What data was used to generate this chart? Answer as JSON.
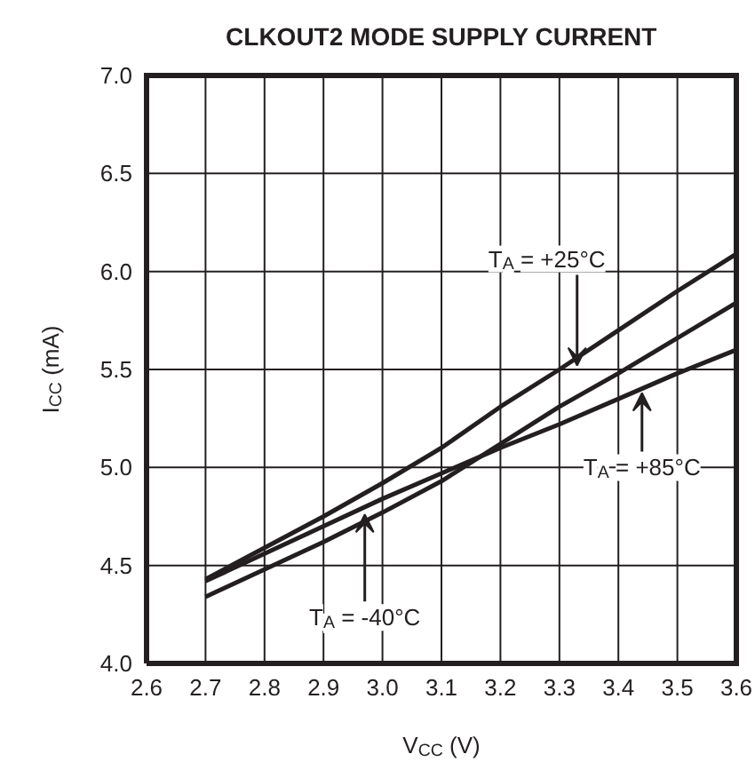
{
  "chart_data": {
    "type": "line",
    "title": "CLKOUT2 MODE SUPPLY CURRENT",
    "xlabel": "V$_{CC}$ (V)",
    "ylabel": "I$_{CC}$ (mA)",
    "series": [
      {
        "color": "#231f20",
        "x": [
          2.7,
          2.9,
          3.0,
          3.1,
          3.2,
          3.3,
          3.4,
          3.5,
          3.6
        ],
        "values": [
          4.43,
          4.75,
          4.92,
          5.1,
          5.31,
          5.5,
          5.7,
          5.9,
          6.09
        ]
      },
      {
        "color": "#231f20",
        "x": [
          2.7,
          2.9,
          3.0,
          3.1,
          3.2,
          3.3,
          3.4,
          3.5,
          3.6
        ],
        "values": [
          4.42,
          4.7,
          4.84,
          4.97,
          5.1,
          5.22,
          5.35,
          5.48,
          5.6
        ]
      },
      {
        "color": "#231f20",
        "x": [
          2.7,
          2.9,
          3.0,
          3.1,
          3.2,
          3.3,
          3.4,
          3.5,
          3.6
        ],
        "values": [
          4.34,
          4.62,
          4.77,
          4.93,
          5.12,
          5.31,
          5.48,
          5.66,
          5.84
        ]
      }
    ],
    "annotations": [
      {
        "text": "T$_{A}$ = +25°C",
        "x": 3.33,
        "y": 5.52
      },
      {
        "text": "T$_{A}$ = +85°C",
        "x": 3.44,
        "y": 5.38
      },
      {
        "text": "T$_{A}$ = -40°C",
        "x": 2.97,
        "y": 4.76
      }
    ],
    "xlim": [
      2.6,
      3.6
    ],
    "xticks": [
      2.6,
      2.7,
      2.8,
      2.9,
      {
        "value": 3.0,
        "label": "3.0"
      },
      3.1,
      3.2,
      3.3,
      3.4,
      3.5,
      3.6
    ],
    "ylim": [
      4.0,
      7.0
    ],
    "yticks": [
      {
        "value": 4.0,
        "label": "4.0"
      },
      4.5,
      {
        "value": 5.0,
        "label": "5.0"
      },
      5.5,
      {
        "value": 6.0,
        "label": "6.0"
      },
      6.5,
      {
        "value": 7.0,
        "label": "7.0"
      }
    ],
    "grid": true,
    "line_style": "solid",
    "marker": "none"
  }
}
